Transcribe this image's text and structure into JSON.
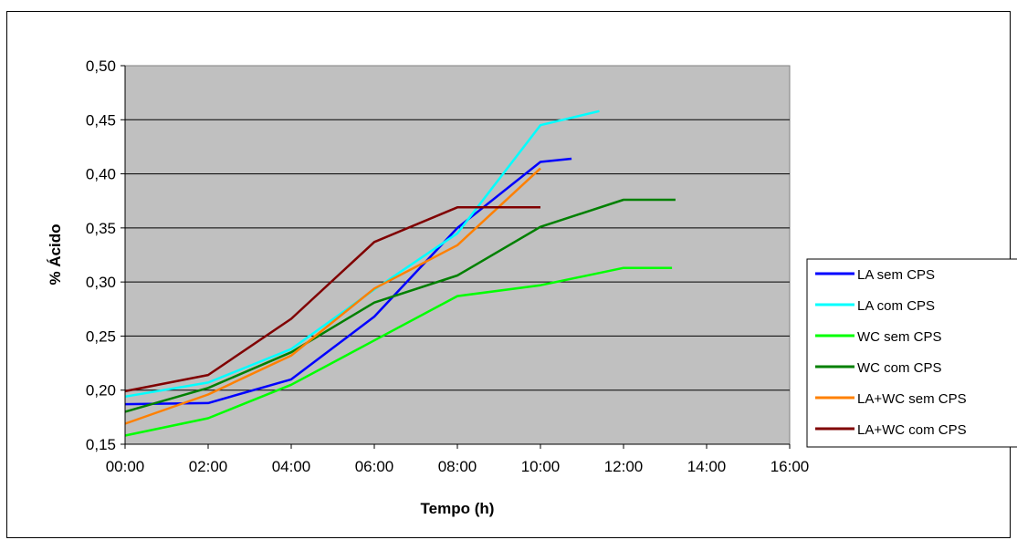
{
  "chart_data": {
    "type": "line",
    "title": "",
    "xlabel": "Tempo (h)",
    "ylabel": "% Ácido",
    "xlim": [
      "00:00",
      "16:00"
    ],
    "ylim": [
      0.15,
      0.5
    ],
    "x_ticks": [
      "00:00",
      "02:00",
      "04:00",
      "06:00",
      "08:00",
      "10:00",
      "12:00",
      "14:00",
      "16:00"
    ],
    "y_ticks": [
      "0,50",
      "0,45",
      "0,40",
      "0,35",
      "0,30",
      "0,25",
      "0,20",
      "0,15"
    ],
    "grid": "horizontal",
    "plot_background": "#c0c0c0",
    "legend_position": "right",
    "series": [
      {
        "name": "LA sem CPS",
        "color": "#0000ff",
        "x": [
          "00:00",
          "02:00",
          "04:00",
          "06:00",
          "08:00",
          "10:00",
          "10:45"
        ],
        "y": [
          0.187,
          0.188,
          0.21,
          0.268,
          0.35,
          0.411,
          0.414
        ]
      },
      {
        "name": "LA com CPS",
        "color": "#00ffff",
        "x": [
          "00:00",
          "02:00",
          "04:00",
          "06:00",
          "08:00",
          "10:00",
          "11:25"
        ],
        "y": [
          0.194,
          0.207,
          0.238,
          0.293,
          0.345,
          0.445,
          0.458
        ]
      },
      {
        "name": "WC sem CPS",
        "color": "#00ff00",
        "x": [
          "00:00",
          "02:00",
          "04:00",
          "06:00",
          "08:00",
          "10:00",
          "12:00",
          "13:10"
        ],
        "y": [
          0.158,
          0.174,
          0.205,
          0.246,
          0.287,
          0.297,
          0.313,
          0.313
        ]
      },
      {
        "name": "WC com CPS",
        "color": "#008000",
        "x": [
          "00:00",
          "02:00",
          "04:00",
          "06:00",
          "08:00",
          "10:00",
          "12:00",
          "13:15"
        ],
        "y": [
          0.18,
          0.202,
          0.235,
          0.281,
          0.306,
          0.351,
          0.376,
          0.376
        ]
      },
      {
        "name": "LA+WC sem CPS",
        "color": "#ff8000",
        "x": [
          "00:00",
          "02:00",
          "04:00",
          "06:00",
          "08:00",
          "10:00"
        ],
        "y": [
          0.169,
          0.196,
          0.232,
          0.294,
          0.334,
          0.405
        ]
      },
      {
        "name": "LA+WC com CPS",
        "color": "#800000",
        "x": [
          "00:00",
          "02:00",
          "04:00",
          "06:00",
          "08:00",
          "10:00"
        ],
        "y": [
          0.199,
          0.214,
          0.266,
          0.337,
          0.369,
          0.369
        ]
      }
    ]
  }
}
